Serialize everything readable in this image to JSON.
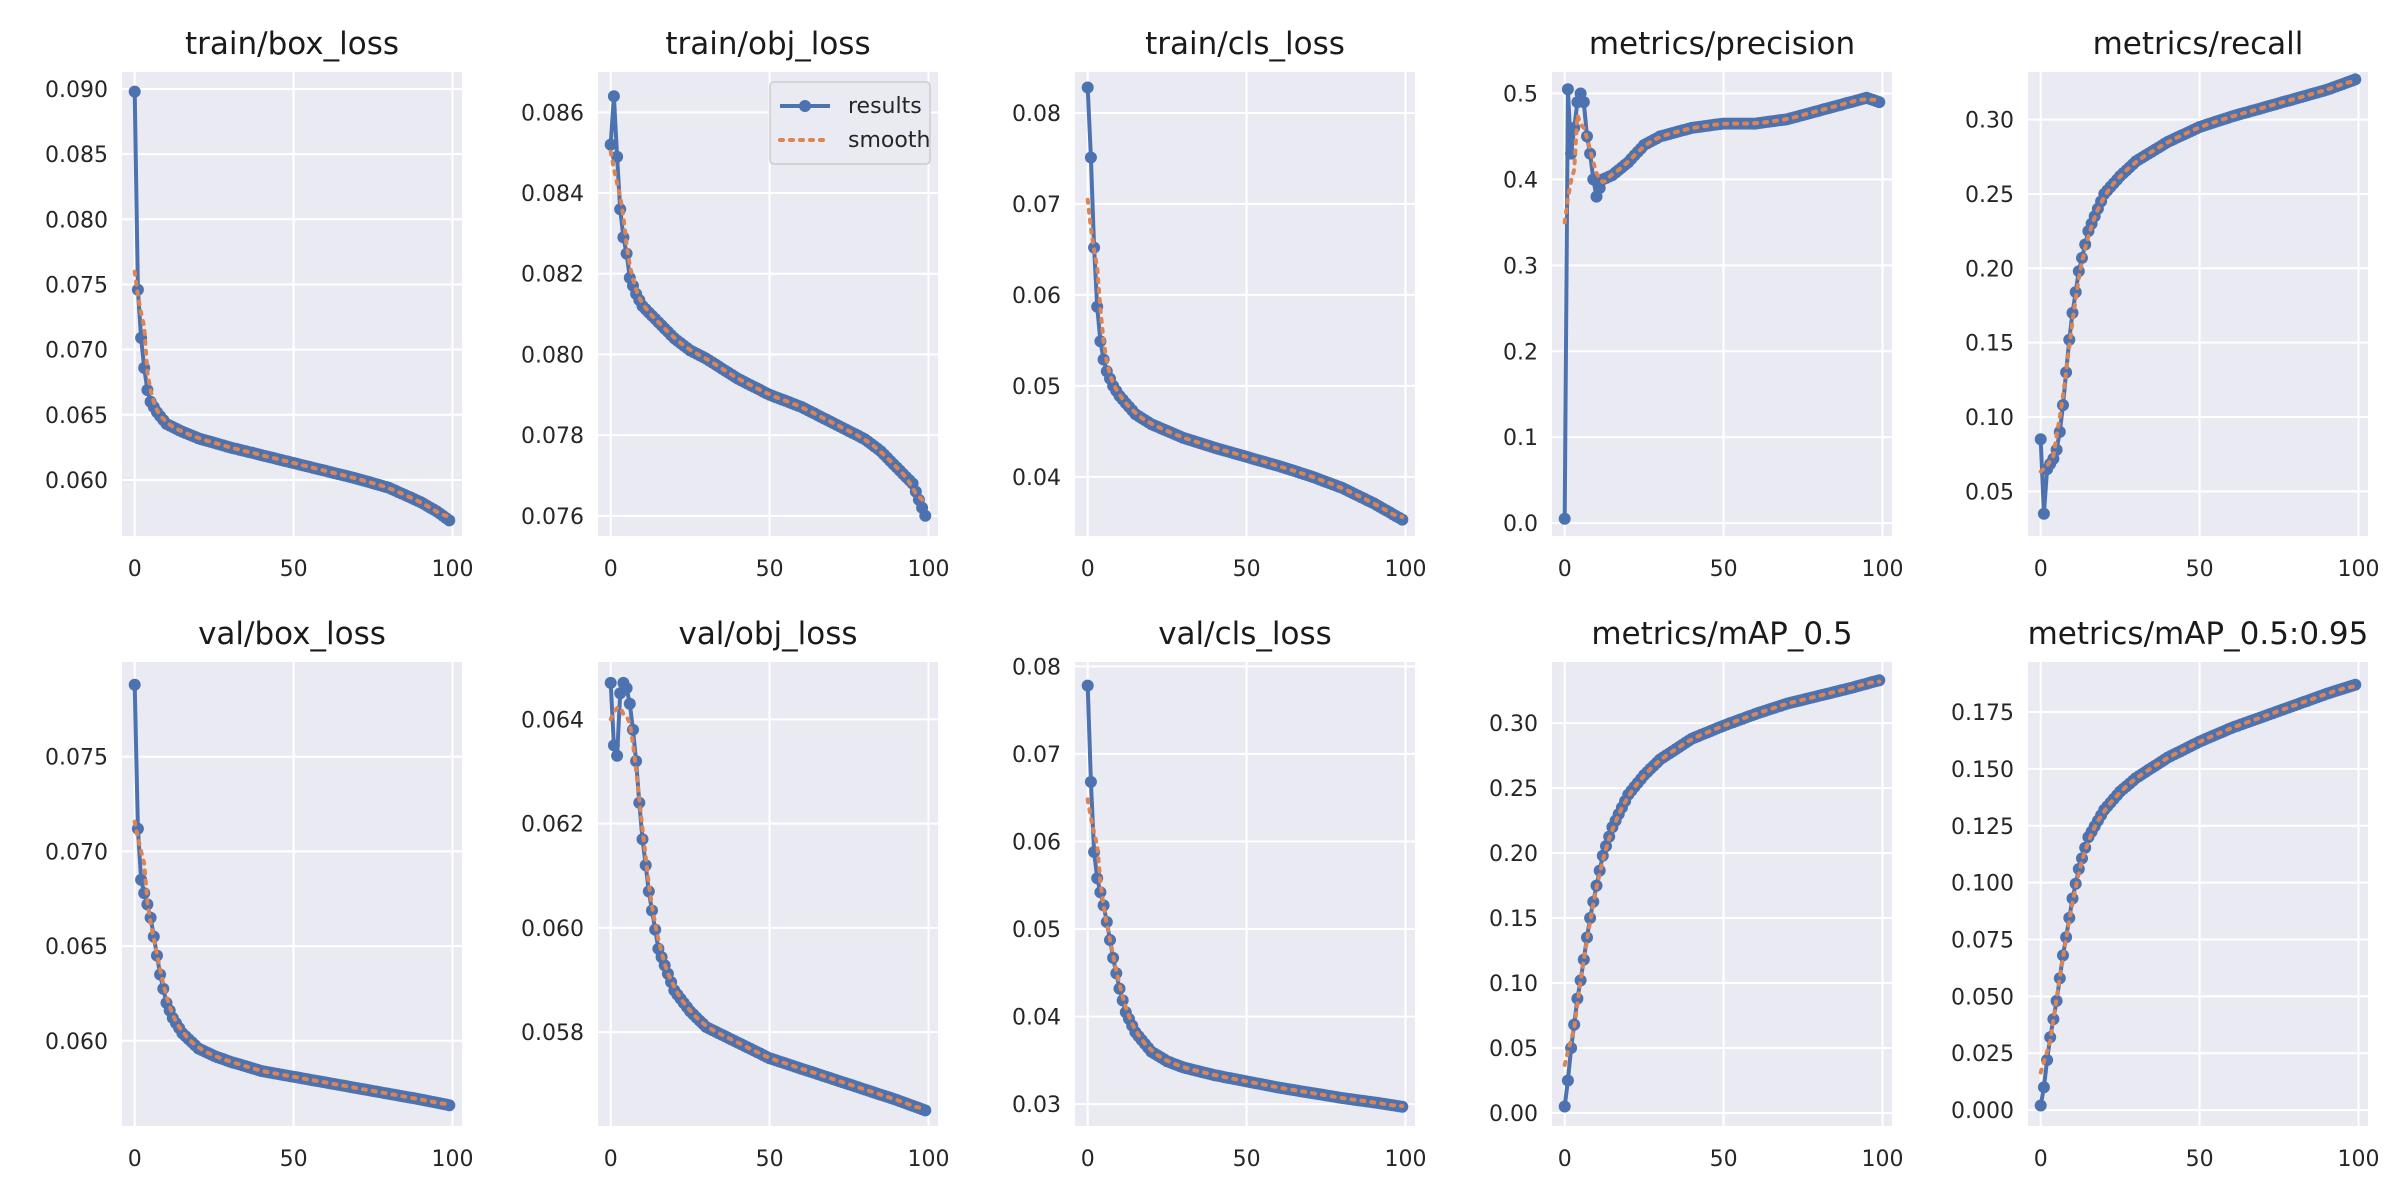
{
  "colors": {
    "results": "#4c72b0",
    "smooth": "#dd8452",
    "plot_bg": "#eaeaf2",
    "grid": "#ffffff"
  },
  "legend": {
    "entries": [
      "results",
      "smooth"
    ],
    "placement": "top-right",
    "panel": "train/obj_loss"
  },
  "chart_data": [
    {
      "type": "line",
      "title": "train/box_loss",
      "xlim": [
        0,
        100
      ],
      "ylim": [
        0.0557,
        0.0913
      ],
      "xticks": [
        "0",
        "50",
        "100"
      ],
      "yticks": [
        "0.060",
        "0.065",
        "0.070",
        "0.075",
        "0.080",
        "0.085",
        "0.090"
      ],
      "anchors": [
        [
          0,
          0.0898
        ],
        [
          1,
          0.0746
        ],
        [
          2,
          0.0709
        ],
        [
          3,
          0.0686
        ],
        [
          4,
          0.0669
        ],
        [
          5,
          0.066
        ],
        [
          7,
          0.0652
        ],
        [
          10,
          0.0643
        ],
        [
          15,
          0.0637
        ],
        [
          20,
          0.0632
        ],
        [
          30,
          0.0625
        ],
        [
          40,
          0.0619
        ],
        [
          50,
          0.0613
        ],
        [
          60,
          0.0607
        ],
        [
          70,
          0.0601
        ],
        [
          80,
          0.0594
        ],
        [
          90,
          0.0583
        ],
        [
          95,
          0.0576
        ],
        [
          99,
          0.0569
        ]
      ]
    },
    {
      "type": "line",
      "title": "train/obj_loss",
      "xlim": [
        0,
        100
      ],
      "ylim": [
        0.0755,
        0.087
      ],
      "xticks": [
        "0",
        "50",
        "100"
      ],
      "yticks": [
        "0.076",
        "0.078",
        "0.080",
        "0.082",
        "0.084",
        "0.086"
      ],
      "anchors": [
        [
          0,
          0.0852
        ],
        [
          1,
          0.0864
        ],
        [
          2,
          0.0849
        ],
        [
          3,
          0.0836
        ],
        [
          4,
          0.0829
        ],
        [
          5,
          0.0825
        ],
        [
          6,
          0.0819
        ],
        [
          8,
          0.0815
        ],
        [
          10,
          0.0812
        ],
        [
          15,
          0.0808
        ],
        [
          20,
          0.0804
        ],
        [
          25,
          0.0801
        ],
        [
          30,
          0.0799
        ],
        [
          40,
          0.0794
        ],
        [
          50,
          0.079
        ],
        [
          60,
          0.0787
        ],
        [
          70,
          0.0783
        ],
        [
          80,
          0.0779
        ],
        [
          85,
          0.0776
        ],
        [
          90,
          0.0772
        ],
        [
          95,
          0.0768
        ],
        [
          99,
          0.076
        ]
      ]
    },
    {
      "type": "line",
      "title": "train/cls_loss",
      "xlim": [
        0,
        100
      ],
      "ylim": [
        0.0335,
        0.0845
      ],
      "xticks": [
        "0",
        "50",
        "100"
      ],
      "yticks": [
        "0.04",
        "0.05",
        "0.06",
        "0.07",
        "0.08"
      ],
      "anchors": [
        [
          0,
          0.0828
        ],
        [
          1,
          0.0751
        ],
        [
          2,
          0.0652
        ],
        [
          3,
          0.0587
        ],
        [
          4,
          0.0549
        ],
        [
          5,
          0.0529
        ],
        [
          6,
          0.0516
        ],
        [
          8,
          0.05
        ],
        [
          10,
          0.0489
        ],
        [
          15,
          0.0469
        ],
        [
          20,
          0.0458
        ],
        [
          30,
          0.0443
        ],
        [
          40,
          0.0432
        ],
        [
          50,
          0.0422
        ],
        [
          60,
          0.0412
        ],
        [
          70,
          0.0401
        ],
        [
          80,
          0.0388
        ],
        [
          90,
          0.0371
        ],
        [
          95,
          0.0361
        ],
        [
          99,
          0.0353
        ]
      ]
    },
    {
      "type": "line",
      "title": "metrics/precision",
      "xlim": [
        0,
        100
      ],
      "ylim": [
        -0.015,
        0.525
      ],
      "xticks": [
        "0",
        "50",
        "100"
      ],
      "yticks": [
        "0.0",
        "0.1",
        "0.2",
        "0.3",
        "0.4",
        "0.5"
      ],
      "anchors": [
        [
          0,
          0.005
        ],
        [
          1,
          0.505
        ],
        [
          2,
          0.43
        ],
        [
          3,
          0.46
        ],
        [
          4,
          0.49
        ],
        [
          5,
          0.5
        ],
        [
          6,
          0.49
        ],
        [
          7,
          0.45
        ],
        [
          8,
          0.43
        ],
        [
          9,
          0.4
        ],
        [
          10,
          0.38
        ],
        [
          12,
          0.4
        ],
        [
          15,
          0.405
        ],
        [
          20,
          0.42
        ],
        [
          25,
          0.44
        ],
        [
          30,
          0.45
        ],
        [
          40,
          0.46
        ],
        [
          50,
          0.465
        ],
        [
          60,
          0.465
        ],
        [
          70,
          0.47
        ],
        [
          80,
          0.48
        ],
        [
          90,
          0.49
        ],
        [
          95,
          0.495
        ],
        [
          99,
          0.49
        ]
      ]
    },
    {
      "type": "line",
      "title": "metrics/recall",
      "xlim": [
        0,
        100
      ],
      "ylim": [
        0.02,
        0.332
      ],
      "xticks": [
        "0",
        "50",
        "100"
      ],
      "yticks": [
        "0.05",
        "0.10",
        "0.15",
        "0.20",
        "0.25",
        "0.30"
      ],
      "anchors": [
        [
          0,
          0.085
        ],
        [
          1,
          0.035
        ],
        [
          2,
          0.065
        ],
        [
          4,
          0.072
        ],
        [
          5,
          0.078
        ],
        [
          6,
          0.09
        ],
        [
          7,
          0.108
        ],
        [
          8,
          0.13
        ],
        [
          9,
          0.152
        ],
        [
          10,
          0.17
        ],
        [
          12,
          0.198
        ],
        [
          15,
          0.225
        ],
        [
          20,
          0.25
        ],
        [
          25,
          0.262
        ],
        [
          30,
          0.272
        ],
        [
          40,
          0.285
        ],
        [
          50,
          0.295
        ],
        [
          60,
          0.302
        ],
        [
          70,
          0.308
        ],
        [
          80,
          0.314
        ],
        [
          90,
          0.32
        ],
        [
          99,
          0.327
        ]
      ]
    },
    {
      "type": "line",
      "title": "val/box_loss",
      "xlim": [
        0,
        100
      ],
      "ylim": [
        0.0555,
        0.08
      ],
      "xticks": [
        "0",
        "50",
        "100"
      ],
      "yticks": [
        "0.060",
        "0.065",
        "0.070",
        "0.075"
      ],
      "anchors": [
        [
          0,
          0.0788
        ],
        [
          1,
          0.0712
        ],
        [
          2,
          0.0685
        ],
        [
          3,
          0.0678
        ],
        [
          4,
          0.0672
        ],
        [
          5,
          0.0665
        ],
        [
          6,
          0.0655
        ],
        [
          7,
          0.0645
        ],
        [
          8,
          0.0635
        ],
        [
          10,
          0.062
        ],
        [
          12,
          0.0612
        ],
        [
          15,
          0.0604
        ],
        [
          20,
          0.0596
        ],
        [
          25,
          0.0592
        ],
        [
          30,
          0.0589
        ],
        [
          40,
          0.0584
        ],
        [
          50,
          0.0581
        ],
        [
          60,
          0.0578
        ],
        [
          70,
          0.0575
        ],
        [
          80,
          0.0572
        ],
        [
          90,
          0.0569
        ],
        [
          99,
          0.0566
        ]
      ]
    },
    {
      "type": "line",
      "title": "val/obj_loss",
      "xlim": [
        0,
        100
      ],
      "ylim": [
        0.0562,
        0.0651
      ],
      "xticks": [
        "0",
        "50",
        "100"
      ],
      "yticks": [
        "0.058",
        "0.060",
        "0.062",
        "0.064"
      ],
      "anchors": [
        [
          0,
          0.0647
        ],
        [
          1,
          0.0635
        ],
        [
          2,
          0.0633
        ],
        [
          3,
          0.0645
        ],
        [
          4,
          0.0647
        ],
        [
          5,
          0.0646
        ],
        [
          6,
          0.0643
        ],
        [
          7,
          0.0638
        ],
        [
          8,
          0.0632
        ],
        [
          9,
          0.0624
        ],
        [
          10,
          0.0617
        ],
        [
          12,
          0.0607
        ],
        [
          15,
          0.0596
        ],
        [
          20,
          0.0588
        ],
        [
          25,
          0.0584
        ],
        [
          30,
          0.0581
        ],
        [
          40,
          0.0578
        ],
        [
          50,
          0.0575
        ],
        [
          60,
          0.0573
        ],
        [
          70,
          0.0571
        ],
        [
          80,
          0.0569
        ],
        [
          90,
          0.0567
        ],
        [
          99,
          0.0565
        ]
      ]
    },
    {
      "type": "line",
      "title": "val/cls_loss",
      "xlim": [
        0,
        100
      ],
      "ylim": [
        0.0275,
        0.0805
      ],
      "xticks": [
        "0",
        "50",
        "100"
      ],
      "yticks": [
        "0.03",
        "0.04",
        "0.05",
        "0.06",
        "0.07",
        "0.08"
      ],
      "anchors": [
        [
          0,
          0.0778
        ],
        [
          1,
          0.0668
        ],
        [
          2,
          0.0588
        ],
        [
          3,
          0.0558
        ],
        [
          4,
          0.0542
        ],
        [
          5,
          0.0527
        ],
        [
          6,
          0.0508
        ],
        [
          8,
          0.0467
        ],
        [
          10,
          0.0432
        ],
        [
          12,
          0.0405
        ],
        [
          15,
          0.0382
        ],
        [
          20,
          0.036
        ],
        [
          25,
          0.0349
        ],
        [
          30,
          0.0342
        ],
        [
          40,
          0.0333
        ],
        [
          50,
          0.0326
        ],
        [
          60,
          0.0319
        ],
        [
          70,
          0.0313
        ],
        [
          80,
          0.0307
        ],
        [
          90,
          0.0302
        ],
        [
          99,
          0.0297
        ]
      ]
    },
    {
      "type": "line",
      "title": "metrics/mAP_0.5",
      "xlim": [
        0,
        100
      ],
      "ylim": [
        -0.01,
        0.347
      ],
      "xticks": [
        "0",
        "50",
        "100"
      ],
      "yticks": [
        "0.00",
        "0.05",
        "0.10",
        "0.15",
        "0.20",
        "0.25",
        "0.30"
      ],
      "anchors": [
        [
          0,
          0.005
        ],
        [
          1,
          0.025
        ],
        [
          2,
          0.05
        ],
        [
          3,
          0.068
        ],
        [
          4,
          0.088
        ],
        [
          5,
          0.102
        ],
        [
          6,
          0.118
        ],
        [
          7,
          0.135
        ],
        [
          8,
          0.15
        ],
        [
          10,
          0.175
        ],
        [
          12,
          0.198
        ],
        [
          15,
          0.22
        ],
        [
          20,
          0.245
        ],
        [
          25,
          0.26
        ],
        [
          30,
          0.272
        ],
        [
          40,
          0.288
        ],
        [
          50,
          0.298
        ],
        [
          60,
          0.307
        ],
        [
          70,
          0.315
        ],
        [
          80,
          0.321
        ],
        [
          90,
          0.327
        ],
        [
          99,
          0.333
        ]
      ]
    },
    {
      "type": "line",
      "title": "metrics/mAP_0.5:0.95",
      "xlim": [
        0,
        100
      ],
      "ylim": [
        -0.007,
        0.197
      ],
      "xticks": [
        "0",
        "50",
        "100"
      ],
      "yticks": [
        "0.000",
        "0.025",
        "0.050",
        "0.075",
        "0.100",
        "0.125",
        "0.150",
        "0.175"
      ],
      "anchors": [
        [
          0,
          0.002
        ],
        [
          1,
          0.01
        ],
        [
          2,
          0.022
        ],
        [
          3,
          0.032
        ],
        [
          4,
          0.04
        ],
        [
          5,
          0.048
        ],
        [
          6,
          0.058
        ],
        [
          7,
          0.068
        ],
        [
          8,
          0.076
        ],
        [
          10,
          0.093
        ],
        [
          12,
          0.106
        ],
        [
          15,
          0.12
        ],
        [
          20,
          0.132
        ],
        [
          25,
          0.14
        ],
        [
          30,
          0.146
        ],
        [
          40,
          0.155
        ],
        [
          50,
          0.162
        ],
        [
          60,
          0.168
        ],
        [
          70,
          0.173
        ],
        [
          80,
          0.178
        ],
        [
          90,
          0.183
        ],
        [
          99,
          0.187
        ]
      ]
    }
  ]
}
